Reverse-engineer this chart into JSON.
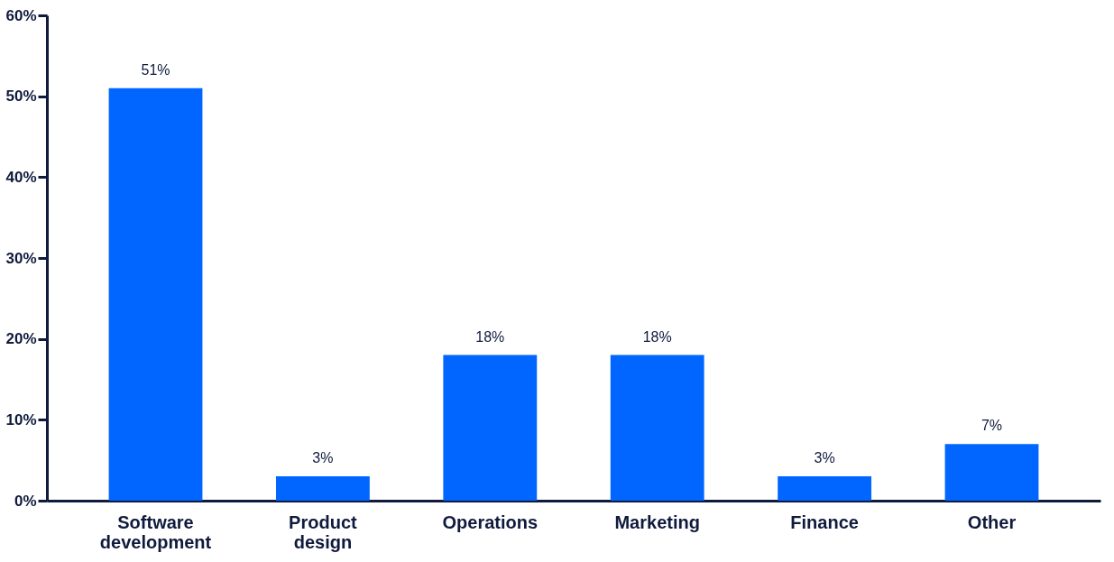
{
  "chart_data": {
    "type": "bar",
    "categories": [
      "Software development",
      "Product design",
      "Operations",
      "Marketing",
      "Finance",
      "Other"
    ],
    "values": [
      51,
      3,
      18,
      18,
      3,
      7
    ],
    "value_labels": [
      "51%",
      "3%",
      "18%",
      "18%",
      "3%",
      "7%"
    ],
    "color": "#0066ff",
    "ylim": [
      0,
      60
    ],
    "yticks": [
      {
        "value": 0,
        "label": "0%"
      },
      {
        "value": 10,
        "label": "10%"
      },
      {
        "value": 20,
        "label": "20%"
      },
      {
        "value": 30,
        "label": "30%"
      },
      {
        "value": 40,
        "label": "40%"
      },
      {
        "value": 50,
        "label": "50%"
      },
      {
        "value": 60,
        "label": "60%"
      }
    ],
    "grid": false
  }
}
